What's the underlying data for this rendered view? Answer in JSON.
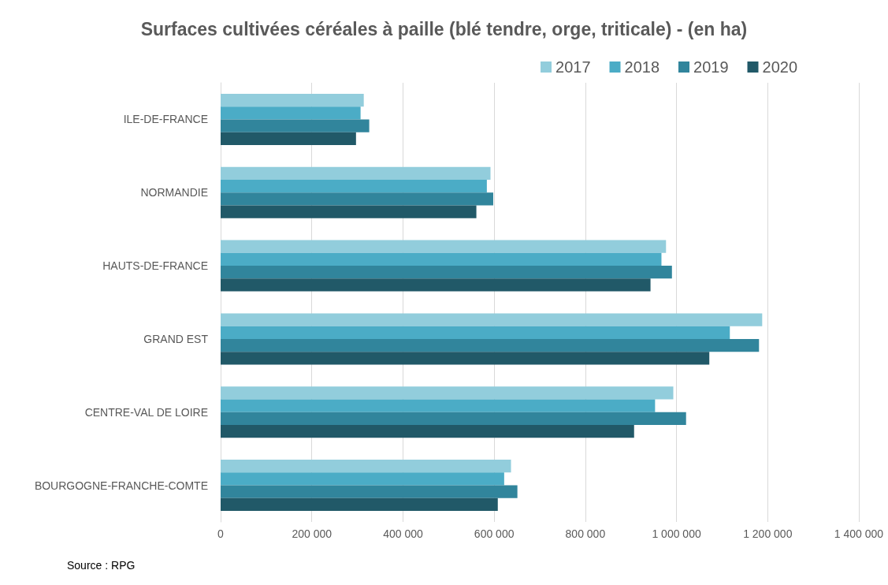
{
  "chart_data": {
    "type": "bar",
    "orientation": "horizontal",
    "title": "Surfaces cultivées céréales à paille (blé tendre, orge, triticale) - (en ha)",
    "categories": [
      "ILE-DE-FRANCE",
      "NORMANDIE",
      "HAUTS-DE-FRANCE",
      "GRAND EST",
      "CENTRE-VAL DE LOIRE",
      "BOURGOGNE-FRANCHE-COMTE"
    ],
    "series": [
      {
        "name": "2017",
        "color": "#92cddc",
        "values": [
          314000,
          592000,
          977000,
          1188000,
          993000,
          637000
        ]
      },
      {
        "name": "2018",
        "color": "#4bacc6",
        "values": [
          307000,
          584000,
          967000,
          1117000,
          953000,
          622000
        ]
      },
      {
        "name": "2019",
        "color": "#31859c",
        "values": [
          326000,
          598000,
          990000,
          1181000,
          1021000,
          651000
        ]
      },
      {
        "name": "2020",
        "color": "#215968",
        "values": [
          297000,
          561000,
          943000,
          1072000,
          907000,
          608000
        ]
      }
    ],
    "xlim": [
      0,
      1400000
    ],
    "xticks": [
      0,
      {
        "value": 200000,
        "label": "200 000"
      },
      {
        "value": 400000,
        "label": "400 000"
      },
      {
        "value": 600000,
        "label": "600 000"
      },
      {
        "value": 800000,
        "label": "800 000"
      },
      {
        "value": 1000000,
        "label": "1 000 000"
      },
      {
        "value": 1200000,
        "label": "1 200 000"
      },
      {
        "value": 1400000,
        "label": "1 400 000"
      }
    ],
    "grid": "x",
    "legend": "top right",
    "annotations": [
      "Source : RPG"
    ]
  }
}
